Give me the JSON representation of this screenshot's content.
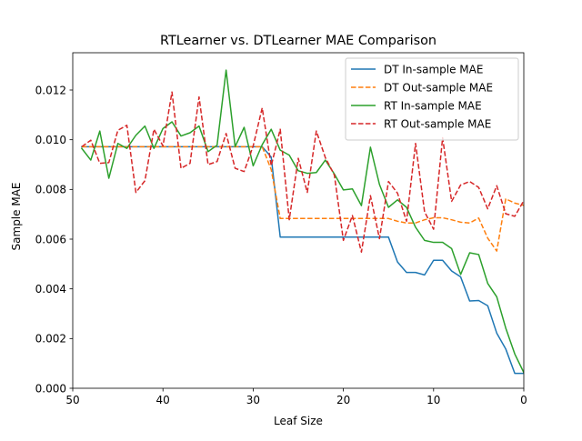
{
  "chart_data": {
    "type": "line",
    "title": "RTLearner vs. DTLearner MAE Comparison",
    "xlabel": "Leaf Size",
    "ylabel": "Sample MAE",
    "xlim": [
      50,
      0
    ],
    "ylim": [
      0.0,
      0.0135
    ],
    "x_inverted": true,
    "grid": false,
    "legend_position": "upper right",
    "xticks": [
      50,
      40,
      30,
      20,
      10,
      0
    ],
    "xtick_labels": [
      "50",
      "40",
      "30",
      "20",
      "10",
      "0"
    ],
    "yticks": [
      0.0,
      0.002,
      0.004,
      0.006,
      0.008,
      0.01,
      0.012
    ],
    "ytick_labels": [
      "0.000",
      "0.002",
      "0.004",
      "0.006",
      "0.008",
      "0.010",
      "0.012"
    ],
    "x": [
      49,
      48,
      47,
      46,
      45,
      44,
      43,
      42,
      41,
      40,
      39,
      38,
      37,
      36,
      35,
      34,
      33,
      32,
      31,
      30,
      29,
      28,
      27,
      26,
      25,
      24,
      23,
      22,
      21,
      20,
      19,
      18,
      17,
      16,
      15,
      14,
      13,
      12,
      11,
      10,
      9,
      8,
      7,
      6,
      5,
      4,
      3,
      2,
      1,
      0
    ],
    "series": [
      {
        "name": "DT In-sample MAE",
        "color": "#1f77b4",
        "dash": "solid",
        "values": [
          0.00972,
          0.00972,
          0.00972,
          0.00972,
          0.00972,
          0.00972,
          0.00972,
          0.00972,
          0.00972,
          0.00972,
          0.00972,
          0.00972,
          0.00972,
          0.00972,
          0.00972,
          0.00972,
          0.00972,
          0.00972,
          0.00972,
          0.00972,
          0.00972,
          0.0093,
          0.00608,
          0.00608,
          0.00608,
          0.00608,
          0.00608,
          0.00608,
          0.00608,
          0.00608,
          0.00608,
          0.00608,
          0.00608,
          0.00608,
          0.00608,
          0.00508,
          0.00466,
          0.00466,
          0.00456,
          0.00515,
          0.00515,
          0.00472,
          0.00448,
          0.00351,
          0.00353,
          0.00332,
          0.00222,
          0.00158,
          0.0006,
          0.0006
        ]
      },
      {
        "name": "DT Out-sample MAE",
        "color": "#ff7f0e",
        "dash": "dashed",
        "values": [
          0.00972,
          0.00972,
          0.00972,
          0.00972,
          0.00972,
          0.00972,
          0.00972,
          0.00972,
          0.00972,
          0.00972,
          0.00972,
          0.00972,
          0.00972,
          0.00972,
          0.00972,
          0.00972,
          0.00972,
          0.00972,
          0.00972,
          0.00972,
          0.00972,
          0.0088,
          0.00683,
          0.00683,
          0.00683,
          0.00683,
          0.00683,
          0.00683,
          0.00683,
          0.00683,
          0.00683,
          0.00683,
          0.00683,
          0.00683,
          0.00683,
          0.00672,
          0.00665,
          0.00665,
          0.00678,
          0.00686,
          0.00686,
          0.00678,
          0.00668,
          0.00665,
          0.00685,
          0.00604,
          0.00552,
          0.00762,
          0.00745,
          0.00736
        ]
      },
      {
        "name": "RT In-sample MAE",
        "color": "#2ca02c",
        "dash": "solid",
        "values": [
          0.00965,
          0.00918,
          0.01035,
          0.00845,
          0.00985,
          0.00965,
          0.01018,
          0.01055,
          0.00965,
          0.01045,
          0.01072,
          0.01015,
          0.01028,
          0.01055,
          0.00952,
          0.00978,
          0.0128,
          0.00972,
          0.0105,
          0.00895,
          0.0098,
          0.01042,
          0.00958,
          0.00938,
          0.00875,
          0.00865,
          0.00868,
          0.00918,
          0.00862,
          0.00798,
          0.00802,
          0.00735,
          0.0097,
          0.0082,
          0.00728,
          0.00758,
          0.00728,
          0.00648,
          0.00595,
          0.00587,
          0.00587,
          0.00562,
          0.00458,
          0.00545,
          0.00538,
          0.00422,
          0.00368,
          0.00242,
          0.00138,
          0.00063
        ]
      },
      {
        "name": "RT Out-sample MAE",
        "color": "#d62728",
        "dash": "dashed",
        "values": [
          0.00972,
          0.00998,
          0.00905,
          0.00908,
          0.01038,
          0.01058,
          0.00788,
          0.00835,
          0.01042,
          0.00975,
          0.01192,
          0.00885,
          0.00905,
          0.01172,
          0.009,
          0.00912,
          0.01025,
          0.00885,
          0.00872,
          0.00975,
          0.01128,
          0.00895,
          0.01042,
          0.00678,
          0.00925,
          0.00788,
          0.01035,
          0.00928,
          0.00858,
          0.00595,
          0.00695,
          0.00548,
          0.00775,
          0.00602,
          0.00832,
          0.00785,
          0.00672,
          0.00985,
          0.0071,
          0.0064,
          0.01008,
          0.00752,
          0.00818,
          0.00832,
          0.00808,
          0.00722,
          0.00815,
          0.00702,
          0.00692,
          0.00755
        ]
      }
    ],
    "legend": {
      "entries": [
        "DT In-sample MAE",
        "DT Out-sample MAE",
        "RT In-sample MAE",
        "RT Out-sample MAE"
      ]
    }
  }
}
